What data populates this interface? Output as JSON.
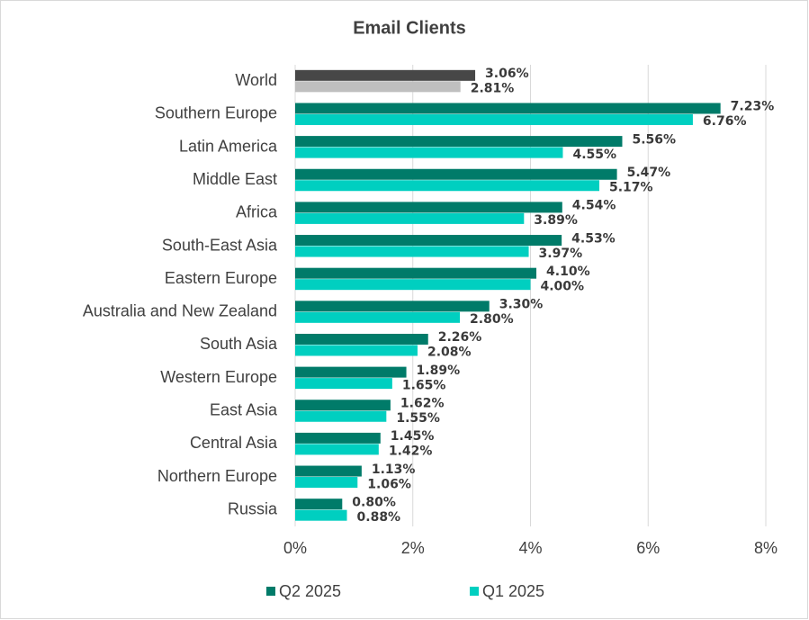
{
  "chart_data": {
    "type": "hbar",
    "title": "Email Clients",
    "categories": [
      "World",
      "Southern Europe",
      "Latin America",
      "Middle East",
      "Africa",
      "South-East Asia",
      "Eastern Europe",
      "Australia and New Zealand",
      "South Asia",
      "Western Europe",
      "East Asia",
      "Central Asia",
      "Northern Europe",
      "Russia"
    ],
    "series": [
      {
        "name": "Q2 2025",
        "color": "#007b69",
        "colors": [
          "#474747",
          "#007b69",
          "#007b69",
          "#007b69",
          "#007b69",
          "#007b69",
          "#007b69",
          "#007b69",
          "#007b69",
          "#007b69",
          "#007b69",
          "#007b69",
          "#007b69",
          "#007b69"
        ],
        "values": [
          3.06,
          7.23,
          5.56,
          5.47,
          4.54,
          4.53,
          4.1,
          3.3,
          2.26,
          1.89,
          1.62,
          1.45,
          1.13,
          0.8
        ],
        "value_labels": [
          "3.06%",
          "7.23%",
          "5.56%",
          "5.47%",
          "4.54%",
          "4.53%",
          "4.10%",
          "3.30%",
          "2.26%",
          "1.89%",
          "1.62%",
          "1.45%",
          "1.13%",
          "0.80%"
        ]
      },
      {
        "name": "Q1 2025",
        "color": "#00cfc0",
        "colors": [
          "#bfbfbf",
          "#00cfc0",
          "#00cfc0",
          "#00cfc0",
          "#00cfc0",
          "#00cfc0",
          "#00cfc0",
          "#00cfc0",
          "#00cfc0",
          "#00cfc0",
          "#00cfc0",
          "#00cfc0",
          "#00cfc0",
          "#00cfc0"
        ],
        "values": [
          2.81,
          6.76,
          4.55,
          5.17,
          3.89,
          3.97,
          4.0,
          2.8,
          2.08,
          1.65,
          1.55,
          1.42,
          1.06,
          0.88
        ],
        "value_labels": [
          "2.81%",
          "6.76%",
          "4.55%",
          "5.17%",
          "3.89%",
          "3.97%",
          "4.00%",
          "2.80%",
          "2.08%",
          "1.65%",
          "1.55%",
          "1.42%",
          "1.06%",
          "0.88%"
        ]
      }
    ],
    "xlim": [
      0,
      8
    ],
    "xticks": [
      {
        "value": 0,
        "label": "0%"
      },
      {
        "value": 2,
        "label": "2%"
      },
      {
        "value": 4,
        "label": "4%"
      },
      {
        "value": 6,
        "label": "6%"
      },
      {
        "value": 8,
        "label": "8%"
      }
    ],
    "grid": true,
    "legend": "bottom"
  }
}
